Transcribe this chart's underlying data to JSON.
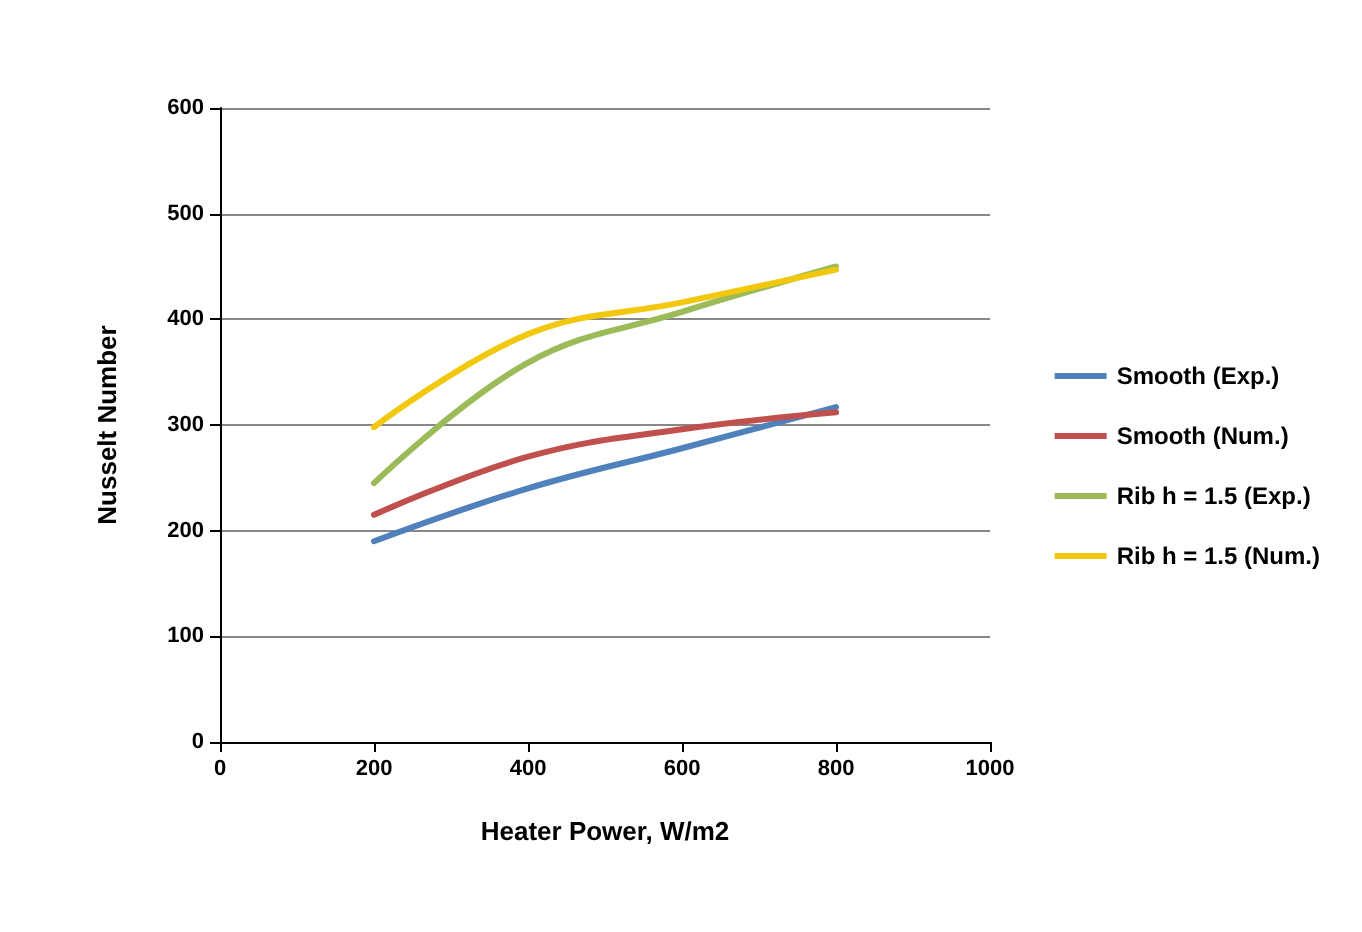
{
  "chart_data": {
    "type": "line",
    "xlabel": "Heater Power, W/m2",
    "ylabel": "Nusselt Number",
    "x": [
      200,
      400,
      600,
      800
    ],
    "series": [
      {
        "name": "Smooth (Exp.)",
        "color": "#4f81bd",
        "values": [
          190,
          240,
          278,
          317
        ]
      },
      {
        "name": "Smooth (Num.)",
        "color": "#c0504d",
        "values": [
          215,
          270,
          296,
          312
        ]
      },
      {
        "name": "Rib h = 1.5 (Exp.)",
        "color": "#9bbb59",
        "values": [
          245,
          359,
          407,
          450
        ]
      },
      {
        "name": "Rib h = 1.5 (Num.)",
        "color": "#f2c80f",
        "values": [
          298,
          386,
          416,
          447
        ]
      }
    ],
    "xlim": [
      0,
      1000
    ],
    "xticks": [
      0,
      200,
      400,
      600,
      800,
      1000
    ],
    "ylim": [
      0,
      600
    ],
    "yticks": [
      0,
      100,
      200,
      300,
      400,
      500,
      600
    ],
    "grid": "y",
    "legend": "right",
    "marker": "none",
    "line_style": "solid"
  }
}
